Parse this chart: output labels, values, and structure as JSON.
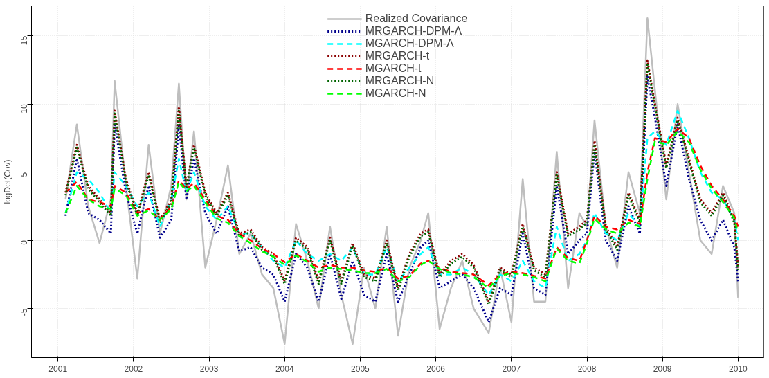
{
  "chart_data": {
    "type": "line",
    "ylabel": "logDet(Cov)",
    "xlim": [
      2000.65,
      2010.34
    ],
    "ylim": [
      -8.6,
      17.2
    ],
    "xticks": [
      2001,
      2002,
      2003,
      2004,
      2005,
      2006,
      2007,
      2008,
      2009,
      2010
    ],
    "yticks": [
      -5,
      0,
      5,
      10,
      15
    ],
    "grid": true,
    "legend": "top",
    "marker": "none",
    "x": [
      2001.1,
      2001.25,
      2001.4,
      2001.55,
      2001.7,
      2001.75,
      2001.9,
      2002.05,
      2002.2,
      2002.35,
      2002.5,
      2002.6,
      2002.7,
      2002.8,
      2002.95,
      2003.1,
      2003.25,
      2003.4,
      2003.55,
      2003.7,
      2003.85,
      2004.0,
      2004.15,
      2004.3,
      2004.45,
      2004.6,
      2004.75,
      2004.9,
      2005.05,
      2005.2,
      2005.35,
      2005.5,
      2005.65,
      2005.8,
      2005.9,
      2006.05,
      2006.2,
      2006.35,
      2006.5,
      2006.7,
      2006.85,
      2007.0,
      2007.15,
      2007.3,
      2007.45,
      2007.6,
      2007.75,
      2007.9,
      2008.0,
      2008.1,
      2008.25,
      2008.4,
      2008.55,
      2008.7,
      2008.8,
      2008.9,
      2009.05,
      2009.2,
      2009.35,
      2009.5,
      2009.65,
      2009.8,
      2009.95,
      2010.0
    ],
    "series": [
      {
        "name": "Realized Covariance",
        "color": "#bebebe",
        "line_style": "solid",
        "values": [
          3.0,
          8.5,
          2.5,
          -0.2,
          3.0,
          11.7,
          4.0,
          -2.8,
          7.0,
          0.5,
          4.0,
          11.5,
          3.0,
          8.0,
          -2.0,
          1.5,
          5.5,
          -1.0,
          0.5,
          -2.5,
          -3.5,
          -7.6,
          1.2,
          -1.5,
          -5.0,
          1.0,
          -4.0,
          -7.6,
          -2.0,
          -5.0,
          1.0,
          -7.0,
          -2.0,
          0,
          2.0,
          -6.5,
          -3.5,
          -1.5,
          -5.0,
          -6.8,
          -2.0,
          -6.0,
          4.5,
          -4.5,
          -4.5,
          6.5,
          -3.5,
          2.0,
          1.0,
          8.8,
          1.0,
          -2.0,
          5.0,
          2.0,
          16.3,
          11.0,
          3.0,
          10.0,
          5.0,
          0,
          -1.0,
          4.0,
          2.0,
          -4.2
        ]
      },
      {
        "name": "MRGARCH-DPM-Λ",
        "color": "#00008b",
        "line_style": "dotted",
        "values": [
          1.8,
          6.0,
          2.0,
          1.5,
          0.5,
          8.5,
          3.5,
          0.5,
          4.0,
          0.2,
          1.5,
          8.5,
          3.0,
          6.0,
          2.0,
          0.5,
          2.5,
          -0.8,
          -0.5,
          -2.0,
          -2.5,
          -4.5,
          -1.0,
          -2.0,
          -4.5,
          -1.0,
          -4.3,
          -1.5,
          -4.0,
          -4.5,
          -1.0,
          -4.5,
          -2.5,
          -0.5,
          0,
          -3.5,
          -3.0,
          -2.5,
          -3.5,
          -6.0,
          -3.5,
          -4.0,
          0.5,
          -3.5,
          -4.0,
          4.0,
          -1.0,
          0,
          0.5,
          6.5,
          0,
          -1.5,
          2.5,
          0.5,
          12.0,
          9.0,
          4.0,
          8.5,
          4.5,
          1.5,
          0,
          1.5,
          -0.5,
          -3.0
        ]
      },
      {
        "name": "MGARCH-DPM-Λ",
        "color": "#00ffff",
        "line_style": "dashed",
        "values": [
          2.0,
          5.0,
          4.5,
          3.5,
          2.0,
          5.0,
          4.0,
          2.5,
          3.5,
          1.0,
          3.0,
          6.0,
          3.5,
          5.0,
          2.5,
          1.5,
          2.5,
          0.5,
          0.5,
          -0.5,
          -1.5,
          -2.0,
          0,
          -1.0,
          -1.5,
          -1.0,
          -1.5,
          -0.5,
          -2.5,
          -2.5,
          -0.5,
          -3.0,
          -2.0,
          -1.0,
          -0.5,
          -2.5,
          -2.5,
          -2.0,
          -2.5,
          -4.0,
          -2.5,
          -3.0,
          -1.5,
          -3.0,
          -3.5,
          1.0,
          -1.5,
          -1.0,
          0,
          2.0,
          0.5,
          0,
          2.0,
          1.0,
          7.5,
          8.0,
          7.0,
          9.5,
          7.5,
          5.0,
          3.5,
          3.0,
          1.5,
          0
        ]
      },
      {
        "name": "MRGARCH-t",
        "color": "#8b0000",
        "line_style": "dotted",
        "values": [
          3.5,
          7.0,
          4.0,
          3.0,
          2.0,
          9.5,
          4.5,
          2.0,
          5.0,
          1.5,
          3.0,
          9.8,
          4.0,
          7.0,
          3.5,
          2.0,
          3.5,
          0.5,
          0.8,
          -0.5,
          -1.0,
          -3.0,
          0.2,
          -0.5,
          -3.0,
          0.2,
          -3.0,
          -0.2,
          -2.5,
          -2.8,
          0,
          -3.5,
          -1.0,
          0.5,
          0.8,
          -2.5,
          -1.5,
          -1.0,
          -1.8,
          -4.5,
          -2.0,
          -2.5,
          1.2,
          -2.0,
          -2.5,
          5.0,
          0.5,
          1.0,
          1.5,
          7.3,
          1.0,
          -0.5,
          3.5,
          1.5,
          13.2,
          10.0,
          5.5,
          9.0,
          6.0,
          3.0,
          2.0,
          3.5,
          1.5,
          -2.0
        ]
      },
      {
        "name": "MGARCH-t",
        "color": "#ff0000",
        "line_style": "dashed",
        "values": [
          3.5,
          4.3,
          3.0,
          2.8,
          2.5,
          4.0,
          3.5,
          2.0,
          2.3,
          1.5,
          2.5,
          4.4,
          3.8,
          4.2,
          3.0,
          1.8,
          1.5,
          0.5,
          0,
          -0.6,
          -1.0,
          -1.6,
          -1.0,
          -1.5,
          -2.0,
          -1.8,
          -2.0,
          -2.0,
          -2.2,
          -2.3,
          -2.0,
          -2.8,
          -2.6,
          -1.7,
          -1.5,
          -2.0,
          -2.3,
          -2.4,
          -2.5,
          -3.3,
          -2.5,
          -2.3,
          -2.4,
          -2.6,
          -2.8,
          -0.5,
          -1.3,
          -1.5,
          0,
          1.8,
          1.0,
          0.8,
          1.5,
          1.2,
          5.0,
          7.5,
          7.2,
          8.2,
          7.5,
          5.5,
          4.0,
          3.0,
          1.8,
          1.0
        ]
      },
      {
        "name": "MRGARCH-N",
        "color": "#006400",
        "line_style": "dotted",
        "values": [
          3.3,
          6.8,
          3.8,
          2.8,
          1.8,
          9.3,
          4.3,
          1.8,
          4.8,
          1.3,
          2.8,
          9.5,
          3.8,
          6.8,
          3.3,
          1.8,
          3.3,
          0.3,
          0.6,
          -0.7,
          -1.2,
          -3.2,
          0,
          -0.7,
          -3.2,
          0,
          -3.2,
          -0.4,
          -2.7,
          -3.0,
          -0.2,
          -3.7,
          -1.2,
          0.3,
          0.6,
          -2.7,
          -1.7,
          -1.2,
          -2.0,
          -4.7,
          -2.2,
          -2.7,
          1.0,
          -2.2,
          -2.7,
          4.8,
          0.3,
          0.8,
          1.3,
          7.0,
          0.8,
          -0.7,
          3.3,
          1.3,
          13.0,
          9.8,
          5.3,
          8.8,
          5.8,
          2.8,
          1.8,
          3.3,
          1.3,
          -2.2
        ]
      },
      {
        "name": "MGARCH-N",
        "color": "#00ff00",
        "line_style": "dashed",
        "values": [
          2.0,
          4.0,
          3.0,
          2.5,
          2.3,
          3.8,
          3.3,
          1.8,
          2.2,
          1.5,
          2.3,
          4.3,
          3.6,
          4.0,
          2.8,
          1.6,
          1.3,
          0.3,
          -0.2,
          -0.8,
          -1.2,
          -1.8,
          -1.1,
          -1.6,
          -2.3,
          -2.0,
          -2.1,
          -2.2,
          -2.4,
          -2.4,
          -2.1,
          -3.0,
          -2.7,
          -1.8,
          -1.5,
          -2.1,
          -2.4,
          -2.5,
          -2.7,
          -3.5,
          -2.6,
          -2.4,
          -2.5,
          -2.7,
          -3.0,
          -0.6,
          -1.5,
          -1.7,
          -0.2,
          1.6,
          0.8,
          0.5,
          1.3,
          1.0,
          4.5,
          7.3,
          7.0,
          8.0,
          7.2,
          5.2,
          3.8,
          2.8,
          1.6,
          0.5
        ]
      }
    ]
  }
}
